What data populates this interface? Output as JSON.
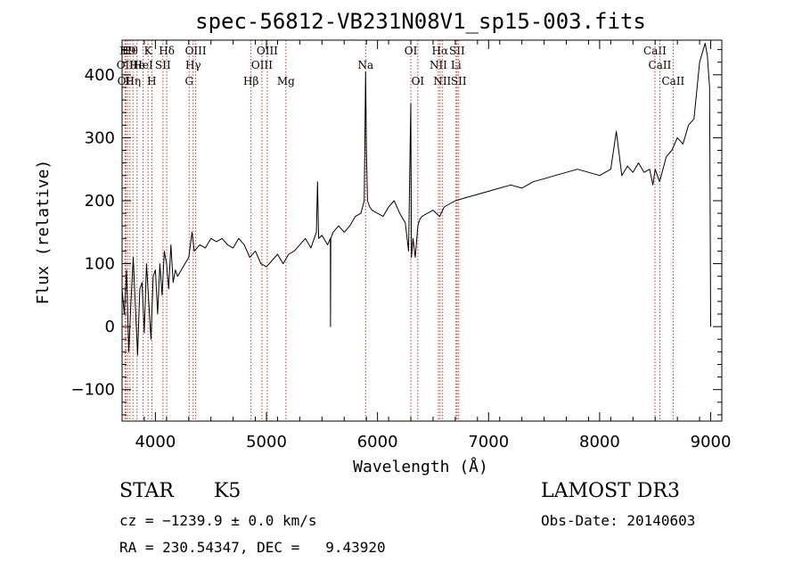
{
  "chart_data": {
    "type": "line",
    "title": "spec-56812-VB231N08V1_sp15-003.fits",
    "xlabel": "Wavelength (Å)",
    "ylabel": "Flux (relative)",
    "xlim": [
      3700,
      9100
    ],
    "ylim": [
      -150,
      455
    ],
    "xticks": [
      4000,
      5000,
      6000,
      7000,
      8000,
      9000
    ],
    "yticks": [
      -100,
      0,
      100,
      200,
      300,
      400
    ],
    "xtick_labels": [
      "4000",
      "5000",
      "6000",
      "7000",
      "8000",
      "9000"
    ],
    "ytick_labels": [
      "−100",
      "0",
      "100",
      "200",
      "300",
      "400"
    ],
    "series": [
      {
        "x": [
          3700,
          3720,
          3740,
          3760,
          3780,
          3800,
          3820,
          3840,
          3860,
          3880,
          3900,
          3920,
          3940,
          3960,
          3980,
          4000,
          4020,
          4040,
          4060,
          4080,
          4100,
          4120,
          4140,
          4160,
          4180,
          4200,
          4250,
          4300,
          4330,
          4350,
          4400,
          4450,
          4500,
          4550,
          4600,
          4650,
          4700,
          4750,
          4800,
          4850,
          4900,
          4950,
          5000,
          5050,
          5100,
          5150,
          5200,
          5250,
          5300,
          5350,
          5400,
          5450,
          5460,
          5470,
          5500,
          5550,
          5575,
          5577,
          5579,
          5600,
          5650,
          5700,
          5750,
          5800,
          5850,
          5880,
          5893,
          5900,
          5910,
          5930,
          5950,
          6000,
          6050,
          6100,
          6150,
          6200,
          6250,
          6280,
          6295,
          6300,
          6305,
          6320,
          6340,
          6363,
          6380,
          6400,
          6450,
          6500,
          6560,
          6600,
          6650,
          6700,
          6800,
          6900,
          7000,
          7100,
          7200,
          7300,
          7400,
          7500,
          7600,
          7700,
          7800,
          7900,
          8000,
          8100,
          8150,
          8200,
          8250,
          8300,
          8350,
          8400,
          8450,
          8480,
          8500,
          8540,
          8600,
          8650,
          8700,
          8750,
          8800,
          8850,
          8900,
          8950,
          8970,
          8990,
          9000
        ],
        "y": [
          60,
          20,
          90,
          -40,
          40,
          110,
          30,
          -45,
          60,
          70,
          -10,
          100,
          40,
          -20,
          80,
          90,
          20,
          100,
          50,
          120,
          100,
          60,
          130,
          70,
          90,
          80,
          95,
          110,
          150,
          120,
          130,
          125,
          140,
          135,
          140,
          130,
          125,
          140,
          130,
          110,
          120,
          100,
          95,
          105,
          115,
          100,
          115,
          120,
          130,
          140,
          125,
          150,
          230,
          140,
          145,
          130,
          140,
          0,
          140,
          150,
          160,
          150,
          160,
          175,
          180,
          200,
          405,
          280,
          200,
          190,
          185,
          180,
          175,
          190,
          200,
          180,
          165,
          120,
          300,
          355,
          110,
          140,
          110,
          160,
          170,
          175,
          180,
          185,
          175,
          190,
          195,
          200,
          205,
          210,
          215,
          220,
          225,
          220,
          230,
          235,
          240,
          245,
          250,
          245,
          240,
          250,
          310,
          240,
          255,
          245,
          260,
          245,
          250,
          225,
          250,
          230,
          270,
          280,
          300,
          290,
          320,
          330,
          420,
          450,
          430,
          380,
          0
        ]
      }
    ],
    "line_markers": [
      {
        "wavelength": 3727,
        "label": "OII",
        "row": 2
      },
      {
        "wavelength": 3734,
        "label": "OII",
        "row": 3
      },
      {
        "wavelength": 3750,
        "label": "H9",
        "row": 1
      },
      {
        "wavelength": 3771,
        "label": "Hθ",
        "row": 1
      },
      {
        "wavelength": 3798,
        "label": "Hη",
        "row": 3
      },
      {
        "wavelength": 3835,
        "label": "He",
        "row": 2
      },
      {
        "wavelength": 3889,
        "label": "HeI",
        "row": 2
      },
      {
        "wavelength": 3934,
        "label": "K",
        "row": 1
      },
      {
        "wavelength": 3968,
        "label": "H",
        "row": 3
      },
      {
        "wavelength": 4068,
        "label": "SII",
        "row": 2
      },
      {
        "wavelength": 4102,
        "label": "Hδ",
        "row": 1
      },
      {
        "wavelength": 4304,
        "label": "G",
        "row": 3
      },
      {
        "wavelength": 4340,
        "label": "Hγ",
        "row": 2
      },
      {
        "wavelength": 4363,
        "label": "OIII",
        "row": 1
      },
      {
        "wavelength": 4861,
        "label": "Hβ",
        "row": 3
      },
      {
        "wavelength": 4959,
        "label": "OIII",
        "row": 2
      },
      {
        "wavelength": 5007,
        "label": "OIII",
        "row": 1
      },
      {
        "wavelength": 5175,
        "label": "Mg",
        "row": 3
      },
      {
        "wavelength": 5893,
        "label": "Na",
        "row": 2
      },
      {
        "wavelength": 6300,
        "label": "OI",
        "row": 1
      },
      {
        "wavelength": 6363,
        "label": "OI",
        "row": 3
      },
      {
        "wavelength": 6548,
        "label": "NII",
        "row": 2
      },
      {
        "wavelength": 6563,
        "label": "Hα",
        "row": 1
      },
      {
        "wavelength": 6583,
        "label": "NII",
        "row": 3
      },
      {
        "wavelength": 6707,
        "label": "Li",
        "row": 2
      },
      {
        "wavelength": 6716,
        "label": "SII",
        "row": 1
      },
      {
        "wavelength": 6731,
        "label": "SII",
        "row": 3
      },
      {
        "wavelength": 8498,
        "label": "CaII",
        "row": 1
      },
      {
        "wavelength": 8542,
        "label": "CaII",
        "row": 2
      },
      {
        "wavelength": 8662,
        "label": "CaII",
        "row": 3
      }
    ],
    "grid": false
  },
  "info": {
    "class_label": "STAR",
    "subclass_label": "K5",
    "survey_label": "LAMOST DR3",
    "cz_line": "cz = −1239.9 ± 0.0 km/s",
    "obs_date_line": "Obs-Date: 20140603",
    "radec_line": "RA = 230.54347, DEC =   9.43920"
  }
}
